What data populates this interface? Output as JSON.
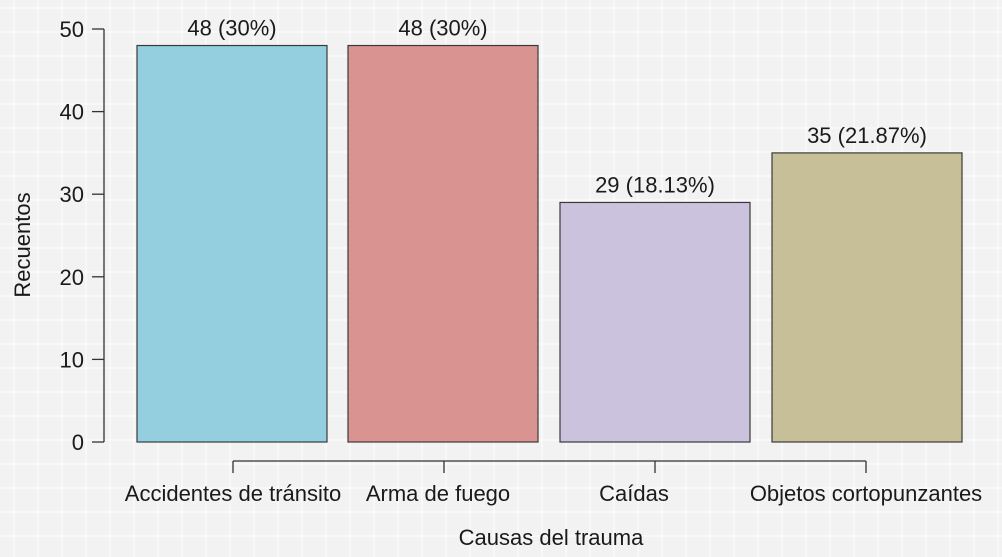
{
  "chart_data": {
    "type": "bar",
    "categories": [
      "Accidentes de tránsito",
      "Arma de fuego",
      "Caídas",
      "Objetos cortopunzantes"
    ],
    "values": [
      48,
      48,
      29,
      35
    ],
    "data_labels": [
      "48 (30%)",
      "48 (30%)",
      "29 (18.13%)",
      "35 (21.87%)"
    ],
    "colors": [
      "#93cfdf",
      "#d99492",
      "#cbc2dd",
      "#c6bf98"
    ],
    "xlabel": "Causas del trauma",
    "ylabel": "Recuentos",
    "ylim": [
      0,
      50
    ],
    "yticks": [
      0,
      10,
      20,
      30,
      40,
      50
    ],
    "grid": true,
    "legend": "none"
  }
}
